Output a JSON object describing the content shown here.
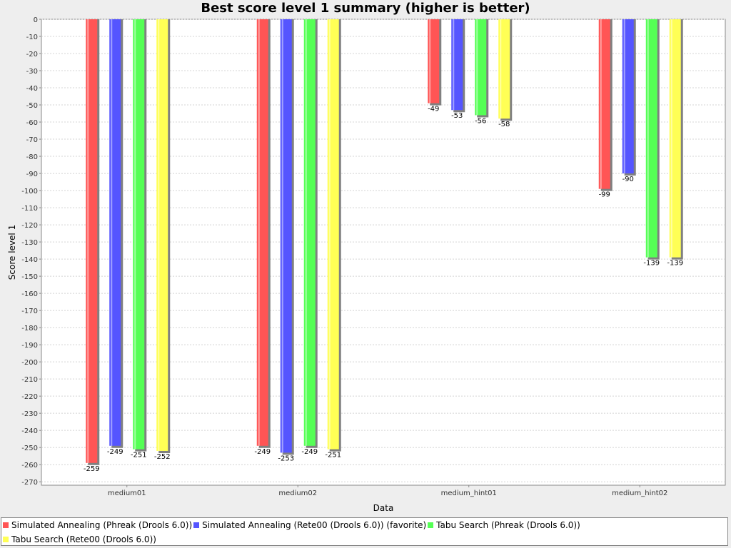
{
  "chart_data": {
    "type": "bar",
    "title": "Best score level 1 summary (higher is better)",
    "xlabel": "Data",
    "ylabel": "Score level 1",
    "categories": [
      "medium01",
      "medium02",
      "medium_hint01",
      "medium_hint02"
    ],
    "ylim": [
      -272,
      0
    ],
    "yticks": [
      0,
      -10,
      -20,
      -30,
      -40,
      -50,
      -60,
      -70,
      -80,
      -90,
      -100,
      -110,
      -120,
      -130,
      -140,
      -150,
      -160,
      -170,
      -180,
      -190,
      -200,
      -210,
      -220,
      -230,
      -240,
      -250,
      -260,
      -270
    ],
    "grid": true,
    "legend_position": "bottom",
    "series": [
      {
        "name": "Simulated Annealing (Phreak (Drools 6.0))",
        "color": "#ff5555",
        "values": [
          -259,
          -249,
          -49,
          -99
        ]
      },
      {
        "name": "Simulated Annealing (Rete00 (Drools 6.0)) (favorite)",
        "color": "#5555ff",
        "values": [
          -249,
          -253,
          -53,
          -90
        ]
      },
      {
        "name": "Tabu Search (Phreak (Drools 6.0))",
        "color": "#55ff55",
        "values": [
          -251,
          -249,
          -56,
          -139
        ]
      },
      {
        "name": "Tabu Search (Rete00 (Drools 6.0))",
        "color": "#ffff55",
        "values": [
          -252,
          -251,
          -58,
          -139
        ]
      }
    ]
  }
}
